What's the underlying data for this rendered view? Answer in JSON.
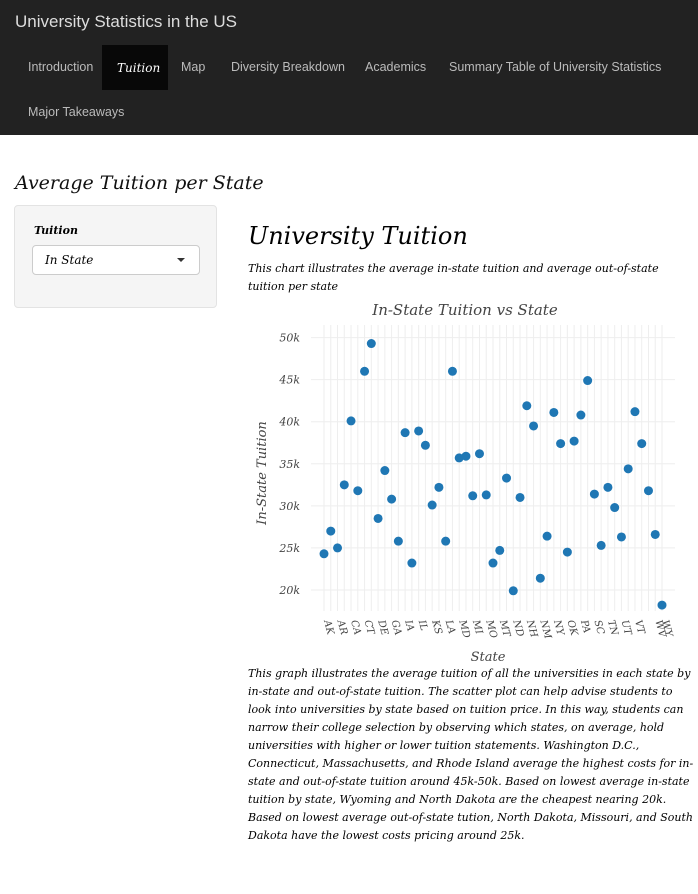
{
  "app": {
    "brand": "University Statistics in the US"
  },
  "nav": {
    "items": [
      "Introduction",
      "Tuition",
      "Map",
      "Diversity Breakdown",
      "Academics",
      "Summary Table of University Statistics",
      "Major Takeaways"
    ],
    "active": "Tuition"
  },
  "page": {
    "title": "Average Tuition per State"
  },
  "sidebar": {
    "label": "Tuition",
    "selected": "In State"
  },
  "main": {
    "title": "University Tuition",
    "intro": "This chart illustrates the average in-state tuition and average out-of-state tuition per state",
    "description": "This graph illustrates the average tuition of all the universities in each state by in-state and out-of-state tuition. The scatter plot can help advise students to look into universities by state based on tuition price. In this way, students can narrow their college selection by observing which states, on average, hold universities with higher or lower tuition statements. Washington D.C., Connecticut, Massachusetts, and Rhode Island average the highest costs for in-state and out-of-state tuition around 45k-50k. Based on lowest average in-state tuition by state, Wyoming and North Dakota are the cheapest nearing 20k. Based on lowest average out-of-state tution, North Dakota, Missouri, and South Dakota have the lowest costs pricing around 25k."
  },
  "colors": {
    "navbar": "#222222",
    "marker": "#1f77b4",
    "grid": "#eeeeee"
  },
  "chart_data": {
    "type": "scatter",
    "title": "In-State Tuition vs State",
    "xlabel": "State",
    "ylabel": "In-State Tuition",
    "ylim": [
      17500,
      51500
    ],
    "yticks": [
      20000,
      25000,
      30000,
      35000,
      40000,
      45000,
      50000
    ],
    "ytick_labels": [
      "20k",
      "25k",
      "30k",
      "35k",
      "40k",
      "45k",
      "50k"
    ],
    "x": [
      "AK",
      "AL",
      "AR",
      "AZ",
      "CA",
      "CO",
      "CT",
      "DC",
      "DE",
      "FL",
      "GA",
      "HI",
      "IA",
      "ID",
      "IL",
      "IN",
      "KS",
      "KY",
      "LA",
      "MA",
      "MD",
      "ME",
      "MI",
      "MN",
      "MO",
      "MS",
      "MT",
      "NC",
      "ND",
      "NE",
      "NH",
      "NJ",
      "NM",
      "NV",
      "NY",
      "OH",
      "OK",
      "OR",
      "PA",
      "RI",
      "SC",
      "SD",
      "TN",
      "TX",
      "UT",
      "VA",
      "VT",
      "WA",
      "WI",
      "WV",
      "WY"
    ],
    "xtick_labels": [
      "AK",
      "AR",
      "CA",
      "CT",
      "DE",
      "GA",
      "IA",
      "IL",
      "KS",
      "LA",
      "MD",
      "MI",
      "MO",
      "MT",
      "ND",
      "NH",
      "NM",
      "NY",
      "OK",
      "PA",
      "SC",
      "TN",
      "UT",
      "VT",
      "WV",
      "WY"
    ],
    "y": [
      24300,
      27000,
      25000,
      32500,
      40100,
      31800,
      46000,
      49300,
      28500,
      34200,
      30800,
      25800,
      38700,
      23200,
      38900,
      37200,
      30100,
      32200,
      25800,
      46000,
      35700,
      35900,
      31200,
      36200,
      31300,
      23200,
      24700,
      33300,
      19900,
      31000,
      41900,
      39500,
      21400,
      26400,
      41100,
      37400,
      24500,
      37700,
      40800,
      44900,
      31400,
      25300,
      32200,
      29800,
      26300,
      34400,
      41200,
      37400,
      31800,
      26600,
      18200
    ],
    "grid": true,
    "legend": "none"
  }
}
